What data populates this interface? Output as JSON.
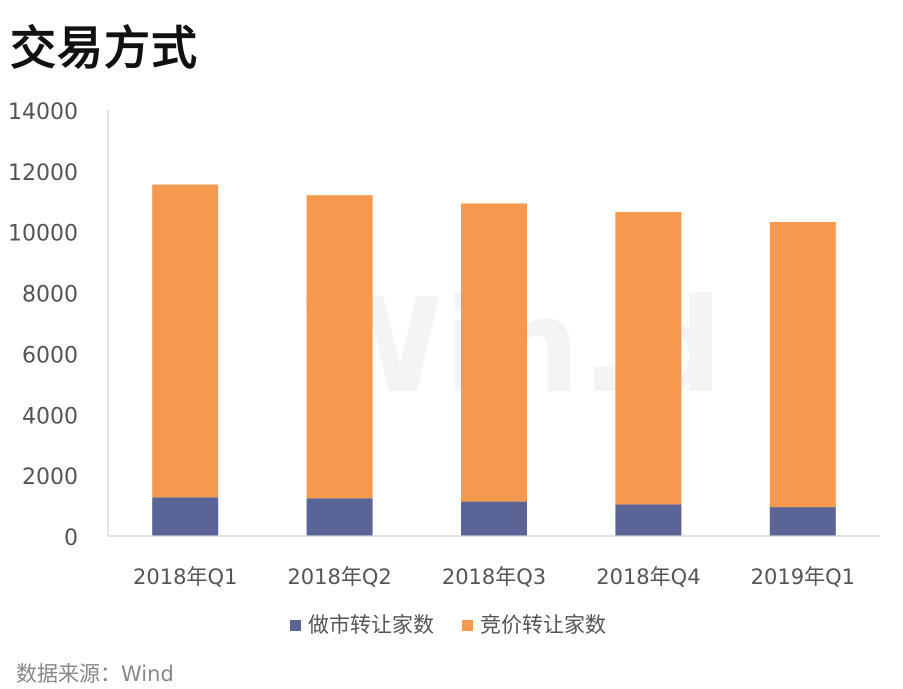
{
  "chart_data": {
    "type": "bar",
    "stacked": true,
    "title": "交易方式",
    "categories": [
      "2018年Q1",
      "2018年Q2",
      "2018年Q3",
      "2018年Q4",
      "2019年Q1"
    ],
    "series": [
      {
        "name": "做市转让家数",
        "color": "#5b6496",
        "values": [
          1270,
          1240,
          1130,
          1040,
          950
        ]
      },
      {
        "name": "竞价转让家数",
        "color": "#f4994e",
        "values": [
          10280,
          9960,
          9800,
          9610,
          9370
        ]
      }
    ],
    "ylim": [
      0,
      14000
    ],
    "yticks": [
      0,
      2000,
      4000,
      6000,
      8000,
      10000,
      12000,
      14000
    ],
    "grid": false,
    "legend": "bottom",
    "watermark": "Win.d",
    "source": "数据来源：Wind"
  }
}
